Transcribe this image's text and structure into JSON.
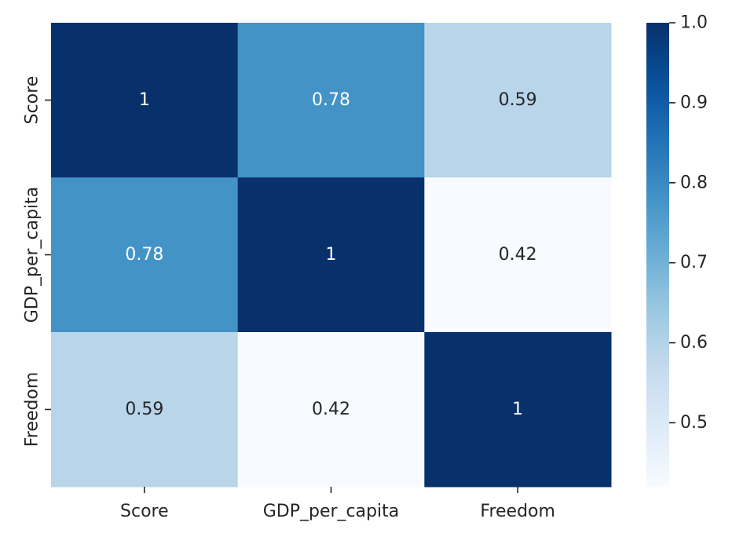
{
  "chart_data": {
    "type": "heatmap",
    "title": "",
    "xlabel": "",
    "ylabel": "",
    "x_categories": [
      "Score",
      "GDP_per_capita",
      "Freedom"
    ],
    "y_categories": [
      "Score",
      "GDP_per_capita",
      "Freedom"
    ],
    "values": [
      [
        1,
        0.78,
        0.59
      ],
      [
        0.78,
        1,
        0.42
      ],
      [
        0.59,
        0.42,
        1
      ]
    ],
    "annotations": [
      [
        "1",
        "0.78",
        "0.59"
      ],
      [
        "0.78",
        "1",
        "0.42"
      ],
      [
        "0.59",
        "0.42",
        "1"
      ]
    ],
    "colormap": "Blues",
    "colorbar": {
      "range": [
        0.42,
        1.0
      ],
      "ticks": [
        0.5,
        0.6,
        0.7,
        0.8,
        0.9,
        1.0
      ],
      "tick_labels": [
        "0.5",
        "0.6",
        "0.7",
        "0.8",
        "0.9",
        "1.0"
      ]
    },
    "colors": {
      "low": "#f7fbff",
      "high": "#08306b",
      "text_dark": "#262626",
      "text_light": "#ffffff"
    }
  }
}
